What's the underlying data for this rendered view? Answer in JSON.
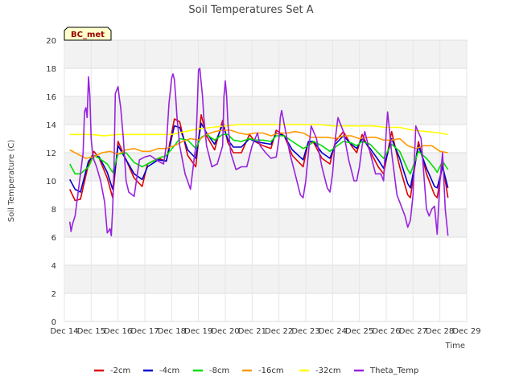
{
  "chart_data": {
    "type": "line",
    "title": "Soil Temperatures Set A",
    "xlabel": "Time",
    "ylabel": "Soil Temperature (C)",
    "ylim": [
      0,
      20
    ],
    "xlim": [
      "Dec 14",
      "Dec 29"
    ],
    "yticks": [
      0,
      2,
      4,
      6,
      8,
      10,
      12,
      14,
      16,
      18,
      20
    ],
    "xticks": [
      "Dec 14",
      "Dec 15",
      "Dec 16",
      "Dec 17",
      "Dec 18",
      "Dec 19",
      "Dec 20",
      "Dec 21",
      "Dec 22",
      "Dec 23",
      "Dec 24",
      "Dec 25",
      "Dec 26",
      "Dec 27",
      "Dec 28",
      "Dec 29"
    ],
    "grid": true,
    "legend_position": "bottom",
    "site_label": "BC_met",
    "series": [
      {
        "name": "-2cm",
        "color": "#dd0000",
        "x": [
          14.2,
          14.4,
          14.6,
          14.9,
          15.1,
          15.3,
          15.6,
          15.8,
          16.0,
          16.3,
          16.6,
          16.9,
          17.1,
          17.5,
          17.8,
          18.1,
          18.3,
          18.6,
          18.9,
          19.1,
          19.3,
          19.6,
          19.9,
          20.1,
          20.3,
          20.6,
          20.9,
          21.1,
          21.4,
          21.7,
          21.9,
          22.2,
          22.5,
          22.9,
          23.1,
          23.3,
          23.6,
          23.9,
          24.1,
          24.4,
          24.7,
          24.9,
          25.1,
          25.4,
          25.7,
          25.9,
          26.2,
          26.5,
          26.8,
          26.9,
          27.2,
          27.5,
          27.8,
          27.9,
          28.1,
          28.3
        ],
        "y": [
          9.4,
          8.6,
          8.7,
          11.2,
          12.1,
          11.6,
          10.2,
          8.8,
          12.8,
          11.5,
          10.2,
          9.6,
          11.2,
          11.6,
          11.4,
          14.4,
          14.2,
          11.8,
          11.0,
          14.7,
          13.2,
          12.2,
          14.3,
          12.7,
          12.0,
          12.0,
          13.3,
          12.8,
          12.5,
          12.3,
          13.6,
          13.2,
          11.8,
          11.0,
          12.8,
          12.7,
          11.6,
          11.2,
          12.8,
          13.5,
          12.5,
          12.0,
          13.3,
          12.1,
          11.0,
          10.5,
          13.5,
          11.0,
          9.0,
          8.8,
          12.8,
          10.5,
          9.0,
          8.8,
          11.2,
          8.8
        ]
      },
      {
        "name": "-4cm",
        "color": "#0000cc",
        "x": [
          14.2,
          14.4,
          14.6,
          14.9,
          15.1,
          15.3,
          15.6,
          15.8,
          16.0,
          16.3,
          16.6,
          16.9,
          17.1,
          17.5,
          17.8,
          18.1,
          18.3,
          18.6,
          18.9,
          19.1,
          19.3,
          19.6,
          19.9,
          20.1,
          20.3,
          20.6,
          20.9,
          21.1,
          21.4,
          21.7,
          21.9,
          22.2,
          22.5,
          22.9,
          23.1,
          23.3,
          23.6,
          23.9,
          24.1,
          24.4,
          24.7,
          24.9,
          25.1,
          25.4,
          25.7,
          25.9,
          26.2,
          26.5,
          26.8,
          26.9,
          27.2,
          27.5,
          27.8,
          27.9,
          28.1,
          28.3
        ],
        "y": [
          10.1,
          9.4,
          9.2,
          11.4,
          11.8,
          11.7,
          10.6,
          9.4,
          12.5,
          11.5,
          10.5,
          10.1,
          11.0,
          11.5,
          11.4,
          13.9,
          13.8,
          12.2,
          11.6,
          14.1,
          13.4,
          12.6,
          14.0,
          12.9,
          12.4,
          12.4,
          13.0,
          12.8,
          12.7,
          12.6,
          13.4,
          13.2,
          12.2,
          11.5,
          12.8,
          12.8,
          12.0,
          11.6,
          12.6,
          13.2,
          12.6,
          12.3,
          13.0,
          12.3,
          11.5,
          10.9,
          13.0,
          11.6,
          9.8,
          9.5,
          12.5,
          10.9,
          9.6,
          9.5,
          11.0,
          9.5
        ]
      },
      {
        "name": "-8cm",
        "color": "#00dd00",
        "x": [
          14.2,
          14.4,
          14.6,
          14.9,
          15.1,
          15.3,
          15.6,
          15.8,
          16.0,
          16.3,
          16.6,
          16.9,
          17.1,
          17.5,
          17.8,
          18.1,
          18.3,
          18.6,
          18.9,
          19.1,
          19.3,
          19.6,
          19.9,
          20.1,
          20.3,
          20.6,
          20.9,
          21.1,
          21.4,
          21.7,
          21.9,
          22.2,
          22.5,
          22.9,
          23.1,
          23.3,
          23.6,
          23.9,
          24.1,
          24.4,
          24.7,
          24.9,
          25.1,
          25.4,
          25.7,
          25.9,
          26.2,
          26.5,
          26.8,
          26.9,
          27.2,
          27.5,
          27.8,
          27.9,
          28.1,
          28.3
        ],
        "y": [
          11.2,
          10.5,
          10.5,
          11.0,
          11.8,
          11.6,
          11.2,
          10.6,
          11.9,
          12.0,
          11.3,
          11.0,
          11.2,
          11.6,
          11.8,
          12.5,
          13.0,
          12.9,
          12.3,
          13.1,
          13.3,
          12.9,
          13.3,
          13.3,
          12.9,
          12.8,
          13.0,
          12.9,
          12.9,
          12.8,
          13.2,
          13.2,
          12.8,
          12.3,
          12.5,
          12.8,
          12.5,
          12.1,
          12.4,
          12.8,
          12.7,
          12.5,
          12.8,
          12.6,
          12.0,
          11.6,
          12.6,
          12.1,
          10.8,
          10.5,
          12.1,
          11.6,
          10.9,
          10.6,
          11.4,
          10.8
        ]
      },
      {
        "name": "-16cm",
        "color": "#ff9900",
        "x": [
          14.2,
          14.5,
          14.8,
          15.1,
          15.4,
          15.7,
          16.0,
          16.3,
          16.6,
          16.9,
          17.2,
          17.5,
          17.8,
          18.1,
          18.4,
          18.7,
          19.0,
          19.3,
          19.6,
          19.9,
          20.2,
          20.5,
          20.8,
          21.1,
          21.4,
          21.7,
          22.0,
          22.3,
          22.6,
          22.9,
          23.2,
          23.5,
          23.8,
          24.1,
          24.4,
          24.7,
          25.0,
          25.3,
          25.6,
          25.9,
          26.2,
          26.5,
          26.8,
          27.1,
          27.4,
          27.7,
          28.0,
          28.3
        ],
        "y": [
          12.2,
          11.9,
          11.6,
          11.7,
          12.0,
          12.1,
          11.9,
          12.2,
          12.3,
          12.1,
          12.1,
          12.3,
          12.3,
          12.5,
          12.8,
          13.0,
          12.9,
          13.3,
          13.5,
          13.6,
          13.6,
          13.4,
          13.3,
          13.4,
          13.4,
          13.2,
          13.4,
          13.4,
          13.5,
          13.4,
          13.1,
          13.1,
          13.1,
          13.0,
          13.2,
          13.2,
          13.0,
          13.1,
          13.1,
          12.9,
          12.9,
          13.0,
          12.5,
          12.3,
          12.5,
          12.5,
          12.1,
          12.0
        ]
      },
      {
        "name": "-32cm",
        "color": "#ffff00",
        "x": [
          14.2,
          14.6,
          15.0,
          15.5,
          16.0,
          16.5,
          17.0,
          17.5,
          18.0,
          18.5,
          19.0,
          19.5,
          20.0,
          20.5,
          21.0,
          21.5,
          22.0,
          22.5,
          23.0,
          23.5,
          24.0,
          24.5,
          25.0,
          25.5,
          26.0,
          26.5,
          27.0,
          27.5,
          28.0,
          28.3
        ],
        "y": [
          13.3,
          13.3,
          13.3,
          13.2,
          13.3,
          13.3,
          13.3,
          13.3,
          13.3,
          13.5,
          13.7,
          13.8,
          13.9,
          14.0,
          14.0,
          14.0,
          14.0,
          14.0,
          14.0,
          14.0,
          13.9,
          13.9,
          13.9,
          13.9,
          13.8,
          13.8,
          13.6,
          13.5,
          13.4,
          13.3
        ]
      },
      {
        "name": "Theta_Temp",
        "color": "#9922dd",
        "x": [
          14.2,
          14.25,
          14.3,
          14.4,
          14.5,
          14.6,
          14.7,
          14.75,
          14.8,
          14.85,
          14.9,
          14.95,
          15.0,
          15.05,
          15.1,
          15.2,
          15.35,
          15.5,
          15.6,
          15.7,
          15.75,
          15.8,
          15.85,
          15.9,
          16.0,
          16.05,
          16.1,
          16.2,
          16.3,
          16.4,
          16.6,
          16.8,
          17.0,
          17.2,
          17.5,
          17.7,
          17.8,
          17.9,
          18.0,
          18.05,
          18.1,
          18.15,
          18.2,
          18.3,
          18.5,
          18.7,
          18.9,
          18.95,
          19.0,
          19.05,
          19.1,
          19.15,
          19.2,
          19.3,
          19.5,
          19.7,
          19.9,
          19.95,
          20.0,
          20.05,
          20.1,
          20.2,
          20.4,
          20.6,
          20.8,
          21.0,
          21.2,
          21.3,
          21.5,
          21.7,
          21.9,
          22.0,
          22.05,
          22.1,
          22.2,
          22.4,
          22.6,
          22.8,
          22.9,
          23.0,
          23.1,
          23.2,
          23.4,
          23.6,
          23.8,
          23.9,
          24.0,
          24.1,
          24.2,
          24.4,
          24.6,
          24.8,
          24.9,
          25.0,
          25.1,
          25.2,
          25.4,
          25.6,
          25.8,
          25.9,
          26.0,
          26.05,
          26.1,
          26.2,
          26.4,
          26.6,
          26.7,
          26.8,
          26.9,
          27.0,
          27.1,
          27.3,
          27.5,
          27.6,
          27.7,
          27.8,
          27.9,
          28.0,
          28.1,
          28.2,
          28.3
        ],
        "y": [
          7.1,
          6.4,
          6.9,
          7.5,
          9.0,
          10.5,
          12.0,
          14.9,
          15.2,
          14.5,
          17.4,
          16.0,
          13.0,
          12.0,
          11.5,
          11.0,
          10.0,
          8.5,
          6.3,
          6.6,
          6.1,
          8.0,
          11.0,
          16.2,
          16.7,
          15.9,
          15.2,
          13.0,
          10.0,
          9.2,
          8.9,
          11.5,
          11.7,
          11.8,
          11.4,
          11.2,
          12.5,
          15.5,
          17.3,
          17.6,
          17.2,
          16.0,
          14.5,
          12.5,
          10.5,
          9.4,
          12.5,
          15.0,
          17.9,
          18.0,
          17.0,
          16.0,
          14.5,
          12.5,
          11.0,
          11.2,
          12.5,
          16.0,
          17.1,
          16.0,
          14.0,
          12.0,
          10.8,
          11.0,
          11.0,
          12.5,
          13.4,
          12.5,
          12.0,
          11.6,
          11.7,
          13.0,
          14.5,
          15.0,
          14.0,
          12.0,
          10.5,
          9.0,
          8.8,
          10.0,
          12.0,
          13.9,
          13.0,
          11.0,
          9.5,
          9.2,
          10.5,
          13.0,
          14.5,
          13.5,
          11.5,
          10.0,
          10.0,
          11.0,
          12.5,
          13.5,
          12.0,
          10.5,
          10.5,
          10.0,
          13.5,
          14.9,
          14.0,
          12.0,
          9.0,
          8.0,
          7.5,
          6.7,
          7.2,
          9.0,
          13.9,
          13.0,
          8.0,
          7.5,
          8.0,
          8.2,
          6.2,
          10.0,
          12.0,
          8.0,
          6.1
        ]
      }
    ]
  }
}
